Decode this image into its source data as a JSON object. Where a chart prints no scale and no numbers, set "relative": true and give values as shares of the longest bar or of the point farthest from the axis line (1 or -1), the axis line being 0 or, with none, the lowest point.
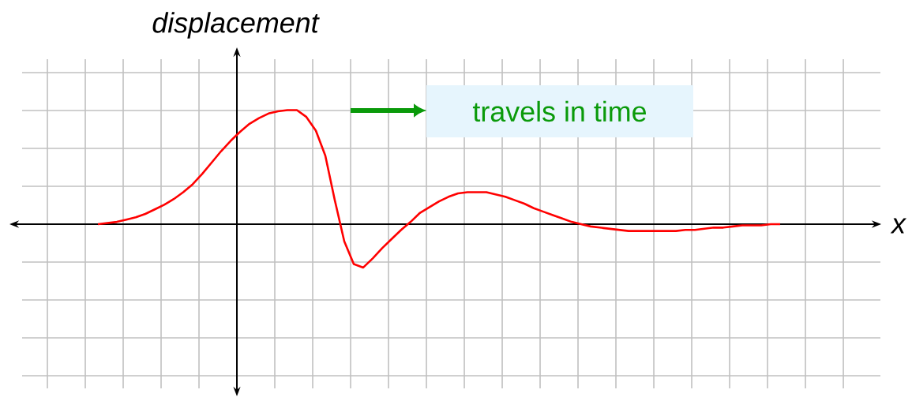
{
  "chart_data": {
    "type": "line",
    "relative": true,
    "grid": true,
    "ylabel": "displacement",
    "xlabel": "x",
    "annotations": [
      "travels in time"
    ],
    "color": "#ff0000",
    "categories": [
      null,
      null,
      null,
      null,
      null,
      null,
      null,
      null,
      null,
      null,
      null,
      null,
      null,
      null,
      null,
      null,
      null,
      null,
      null,
      null,
      null,
      null,
      null,
      null,
      null,
      null,
      null,
      null,
      null,
      null,
      null,
      null,
      null,
      null,
      null,
      null,
      null,
      null,
      null,
      null,
      null,
      null,
      null,
      null,
      null,
      null,
      null,
      null,
      null,
      null,
      null,
      null,
      null,
      null,
      null,
      null,
      null,
      null,
      null,
      null,
      null,
      null,
      null,
      null,
      null,
      null,
      null,
      null,
      null,
      null,
      null,
      null,
      null
    ],
    "values": [
      0,
      0.01,
      0.02,
      0.04,
      0.06,
      0.09,
      0.13,
      0.17,
      0.22,
      0.28,
      0.35,
      0.44,
      0.54,
      0.64,
      0.73,
      0.81,
      0.88,
      0.93,
      0.97,
      0.99,
      1,
      1,
      0.94,
      0.82,
      0.6,
      0.21,
      -0.15,
      -0.35,
      -0.38,
      -0.3,
      -0.21,
      -0.13,
      -0.05,
      0.02,
      0.1,
      0.15,
      0.2,
      0.24,
      0.27,
      0.28,
      0.28,
      0.28,
      0.26,
      0.24,
      0.21,
      0.18,
      0.14,
      0.11,
      0.08,
      0.05,
      0.02,
      0,
      -0.02,
      -0.03,
      -0.04,
      -0.05,
      -0.06,
      -0.06,
      -0.06,
      -0.06,
      -0.06,
      -0.06,
      -0.05,
      -0.05,
      -0.04,
      -0.03,
      -0.03,
      -0.02,
      -0.01,
      -0.01,
      -0.01,
      0,
      0
    ]
  }
}
